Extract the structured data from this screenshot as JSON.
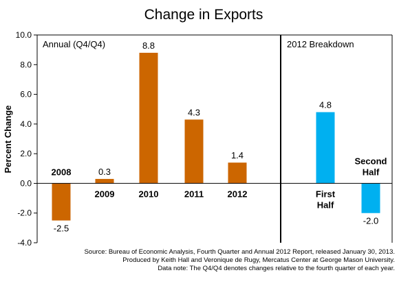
{
  "chart_data": {
    "type": "bar",
    "title": "Change in Exports",
    "ylabel": "Percent Change",
    "ylim": [
      -4.0,
      10.0
    ],
    "yticks": [
      "10.0",
      "8.0",
      "6.0",
      "4.0",
      "2.0",
      "0.0",
      "-2.0",
      "-4.0"
    ],
    "grid": false,
    "panels": [
      {
        "label": "Annual (Q4/Q4)",
        "color": "#cc6600",
        "categories": [
          "2008",
          "2009",
          "2010",
          "2011",
          "2012"
        ],
        "values": [
          -2.5,
          0.3,
          8.8,
          4.3,
          1.4
        ],
        "value_labels": [
          "-2.5",
          "0.3",
          "8.8",
          "4.3",
          "1.4"
        ]
      },
      {
        "label": "2012 Breakdown",
        "color": "#00b0f0",
        "categories": [
          "First Half",
          "Second Half"
        ],
        "category_lines": [
          [
            "First",
            "Half"
          ],
          [
            "Second",
            "Half"
          ]
        ],
        "values": [
          4.8,
          -2.0
        ],
        "value_labels": [
          "4.8",
          "-2.0"
        ]
      }
    ]
  },
  "source_lines": [
    "Source: Bureau of Economic Analysis, Fourth Quarter and Annual 2012 Report, released January 30, 2013.",
    "Produced by Keith Hall and Veronique de Rugy, Mercatus Center at George Mason University.",
    "Data note: The Q4/Q4 denotes changes relative to the fourth quarter of each year."
  ]
}
